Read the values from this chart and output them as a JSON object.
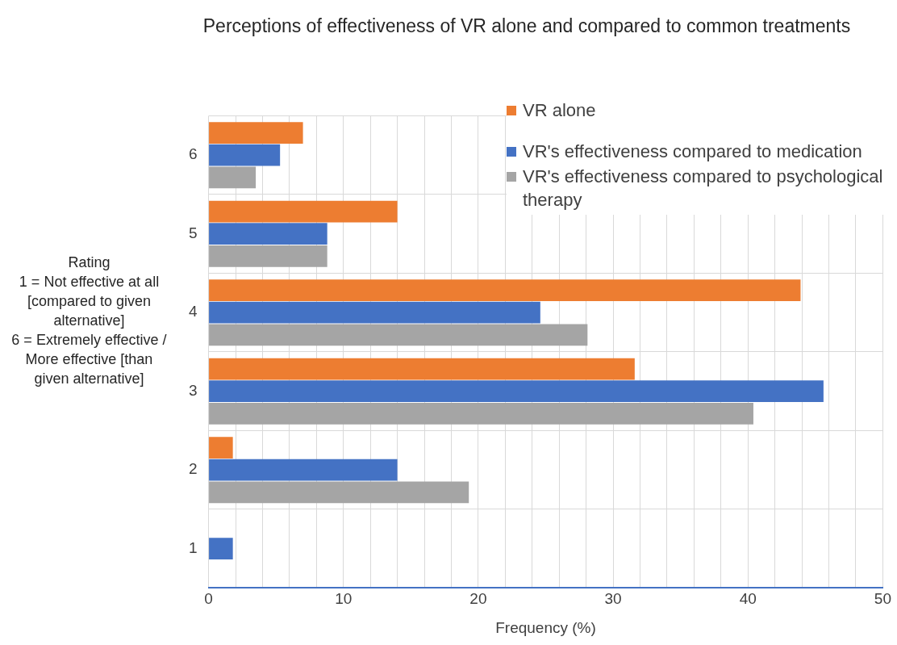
{
  "chart_data": {
    "type": "bar",
    "orientation": "horizontal",
    "title": "Perceptions of effectiveness of VR alone and compared to common treatments",
    "xlabel": "Frequency (%)",
    "ylabel": "Rating\n1 = Not effective at all [compared to given alternative]\n6 = Extremely effective / More effective [than given alternative]",
    "categories": [
      "6",
      "5",
      "4",
      "3",
      "2",
      "1"
    ],
    "series": [
      {
        "name": "VR alone",
        "color": "#ed7d31",
        "values": [
          7.0,
          14.0,
          43.9,
          31.6,
          1.8,
          0
        ]
      },
      {
        "name": "VR's effectiveness compared to medication",
        "color": "#4472c4",
        "values": [
          5.3,
          8.8,
          24.6,
          45.6,
          14.0,
          1.8
        ]
      },
      {
        "name": "VR's effectiveness compared to psychological therapy",
        "color": "#a5a5a5",
        "values": [
          3.5,
          8.8,
          28.1,
          40.4,
          19.3,
          0
        ]
      }
    ],
    "xlim": [
      0,
      50
    ],
    "xticks": [
      0,
      {
        "value": 2,
        "label": null
      },
      {
        "value": 4,
        "label": null
      },
      {
        "value": 6,
        "label": null
      },
      {
        "value": 8,
        "label": null
      },
      10,
      {
        "value": 12,
        "label": null
      },
      {
        "value": 14,
        "label": null
      },
      {
        "value": 16,
        "label": null
      },
      {
        "value": 18,
        "label": null
      },
      20,
      {
        "value": 22,
        "label": null
      },
      {
        "value": 24,
        "label": null
      },
      {
        "value": 26,
        "label": null
      },
      {
        "value": 28,
        "label": null
      },
      30,
      {
        "value": 32,
        "label": null
      },
      {
        "value": 34,
        "label": null
      },
      {
        "value": 36,
        "label": null
      },
      {
        "value": 38,
        "label": null
      },
      40,
      {
        "value": 42,
        "label": null
      },
      {
        "value": 44,
        "label": null
      },
      {
        "value": 46,
        "label": null
      },
      {
        "value": 48,
        "label": null
      },
      50
    ],
    "grid": true,
    "legend": "top right"
  }
}
